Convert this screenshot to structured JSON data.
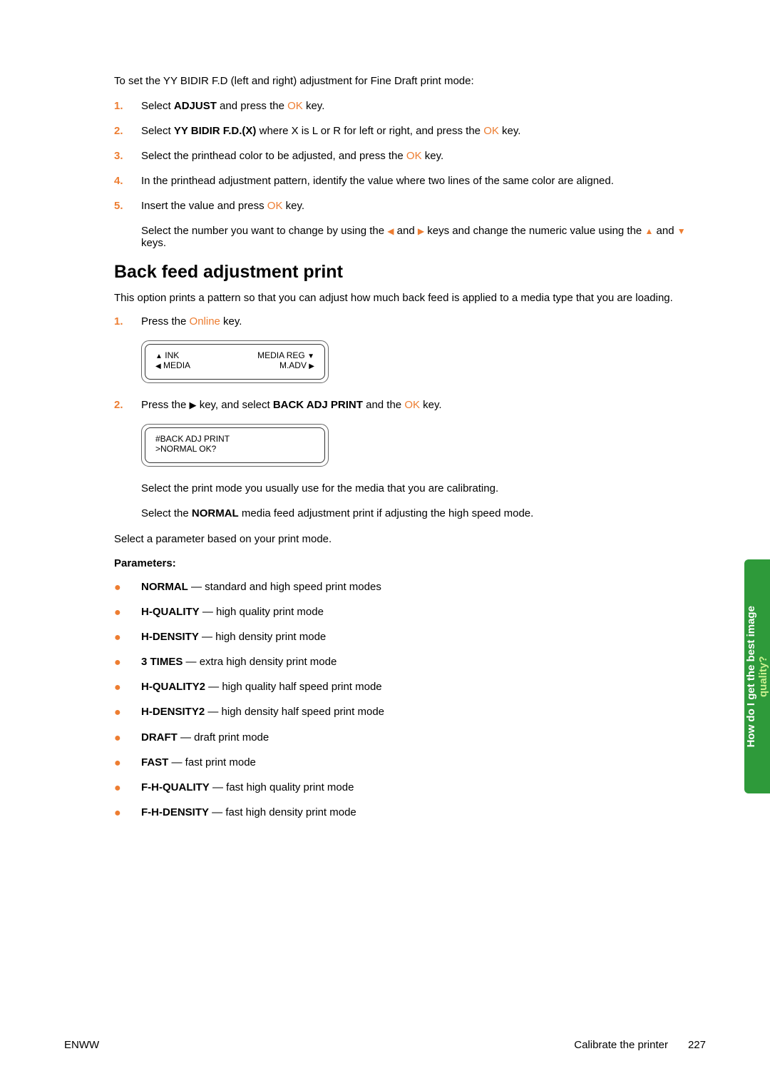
{
  "intro": "To set the YY BIDIR F.D (left and right) adjustment for Fine Draft print mode:",
  "steps_a": [
    {
      "n": "1.",
      "pre": "Select ",
      "bold": "ADJUST",
      "mid": " and press the ",
      "key": "OK",
      "post": " key."
    },
    {
      "n": "2.",
      "pre": "Select ",
      "bold": "YY BIDIR F.D.(X)",
      "mid": "  where X is L or R for left or right, and press the ",
      "key": "OK",
      "post": " key."
    },
    {
      "n": "3.",
      "pre": "Select the printhead color to be adjusted, and press the ",
      "bold": "",
      "mid": "",
      "key": "OK",
      "post": " key."
    },
    {
      "n": "4.",
      "pre": "In the printhead adjustment pattern, identify the value where two lines of the same color are aligned.",
      "bold": "",
      "mid": "",
      "key": "",
      "post": ""
    },
    {
      "n": "5.",
      "pre": "Insert the value and press ",
      "bold": "",
      "mid": "",
      "key": "OK",
      "post": " key."
    }
  ],
  "step5_sub_pre": "Select the number you want to change by using the ",
  "step5_sub_mid1": " and ",
  "step5_sub_mid2": " keys and change the numeric value using the ",
  "step5_sub_mid3": " and ",
  "step5_sub_post": " keys.",
  "arrows": {
    "left": "◀",
    "right": "▶",
    "up": "▲",
    "down": "▼"
  },
  "h2": "Back feed adjustment print",
  "backfeed_intro": "This option prints a pattern so that you can adjust how much back feed is applied to a media type that you are loading.",
  "back_step1": {
    "n": "1.",
    "pre": "Press the ",
    "key": "Online",
    "post": " key."
  },
  "lcd1": {
    "r1l_tri": "▲",
    "r1l": " INK",
    "r1r": "MEDIA REG ",
    "r1r_tri": "▼",
    "r2l_tri": "◀",
    "r2l": " MEDIA",
    "r2r": "M.ADV  ",
    "r2r_tri": "▶"
  },
  "back_step2": {
    "n": "2.",
    "pre": "Press the ",
    "arrow": "▶",
    "mid": " key, and select ",
    "bold": "BACK ADJ PRINT",
    "mid2": " and the ",
    "key": "OK",
    "post": " key."
  },
  "lcd2": {
    "l1": "#BACK ADJ PRINT",
    "l2": ">NORMAL OK?"
  },
  "cal_sub1": "Select the print mode you usually use for the media that you are calibrating.",
  "cal_sub2_pre": "Select the ",
  "cal_sub2_bold": "NORMAL",
  "cal_sub2_post": " media feed adjustment print if adjusting the high speed mode.",
  "select_param": "Select a parameter based on your print mode.",
  "parameters_label": "Parameters:",
  "params": [
    {
      "b": "NORMAL",
      "t": " — standard and high speed print modes"
    },
    {
      "b": "H-QUALITY",
      "t": " — high quality print mode"
    },
    {
      "b": "H-DENSITY",
      "t": " — high density print mode"
    },
    {
      "b": "3 TIMES",
      "t": " — extra high density print mode"
    },
    {
      "b": "H-QUALITY2",
      "t": " — high quality half speed print mode"
    },
    {
      "b": "H-DENSITY2",
      "t": " — high density half speed print mode"
    },
    {
      "b": "DRAFT",
      "t": " — draft print mode"
    },
    {
      "b": "FAST",
      "t": " — fast print mode"
    },
    {
      "b": "F-H-QUALITY",
      "t": " — fast high quality print mode"
    },
    {
      "b": "F-H-DENSITY",
      "t": " — fast high density print mode"
    }
  ],
  "sidetab_l1": "How do I get the best image",
  "sidetab_l2": "quality?",
  "footer": {
    "left": "ENWW",
    "mid": "Calibrate the printer",
    "page": "227"
  }
}
